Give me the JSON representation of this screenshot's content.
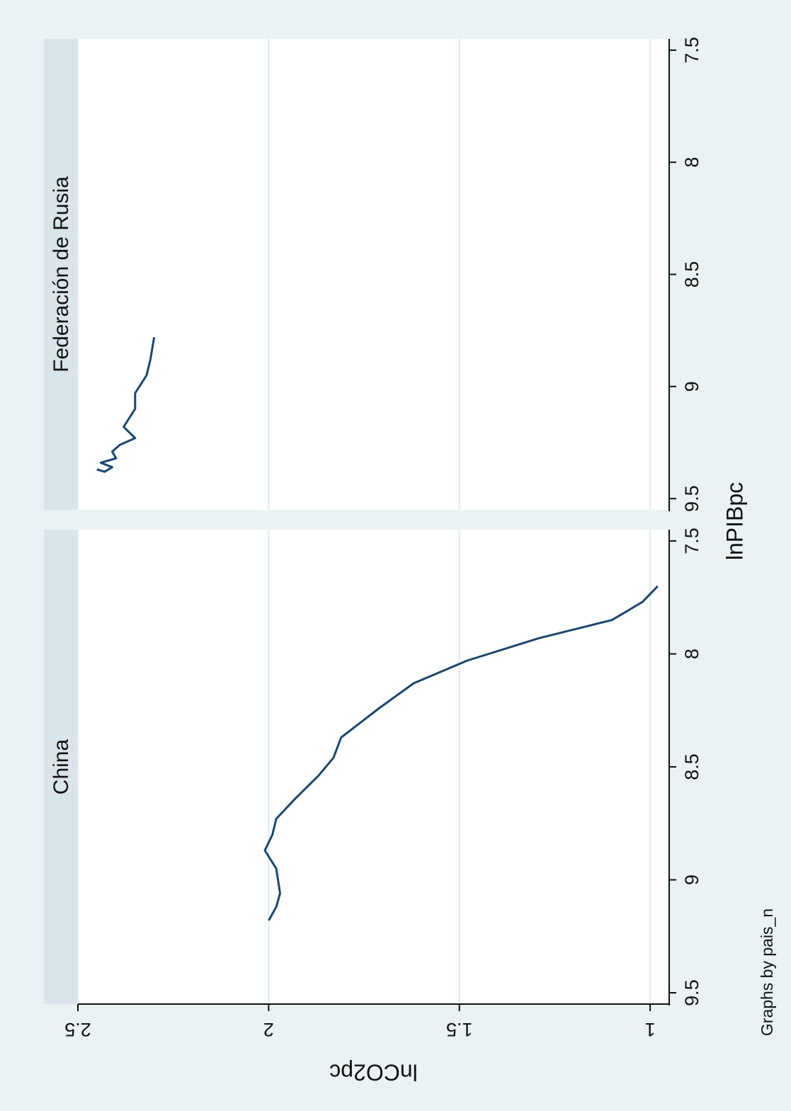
{
  "chart_data": {
    "type": "line",
    "orientation": "rotated 90 degrees clockwise",
    "xlabel": "lnPIBpc",
    "ylabel": "lnCO2pc",
    "note": "Graphs by pais_n",
    "xlim": [
      7.45,
      9.55
    ],
    "ylim": [
      0.95,
      2.5
    ],
    "xticks": [
      "7.5",
      "8",
      "8.5",
      "9",
      "9.5"
    ],
    "yticks": [
      "1",
      "1.5",
      "2",
      "2.5"
    ],
    "grid": true,
    "line_color": "#1a476f",
    "panels": [
      {
        "name": "China",
        "series": [
          {
            "x": [
              7.7,
              7.77,
              7.85,
              7.93,
              8.03,
              8.13,
              8.24,
              8.37,
              8.46,
              8.54,
              8.64,
              8.73,
              8.8,
              8.87,
              8.95,
              9.06,
              9.12,
              9.18
            ],
            "y": [
              0.98,
              1.02,
              1.1,
              1.29,
              1.48,
              1.62,
              1.71,
              1.81,
              1.83,
              1.87,
              1.93,
              1.98,
              1.99,
              2.01,
              1.98,
              1.97,
              1.98,
              2.0
            ]
          }
        ]
      },
      {
        "name": "Federación de Rusia",
        "series": [
          {
            "x": [
              8.78,
              8.88,
              8.95,
              9.03,
              9.1,
              9.18,
              9.23,
              9.26,
              9.29,
              9.32,
              9.34,
              9.36,
              9.38,
              9.37
            ],
            "y": [
              2.3,
              2.31,
              2.32,
              2.35,
              2.35,
              2.38,
              2.35,
              2.39,
              2.41,
              2.4,
              2.44,
              2.41,
              2.43,
              2.45
            ]
          }
        ]
      }
    ]
  }
}
